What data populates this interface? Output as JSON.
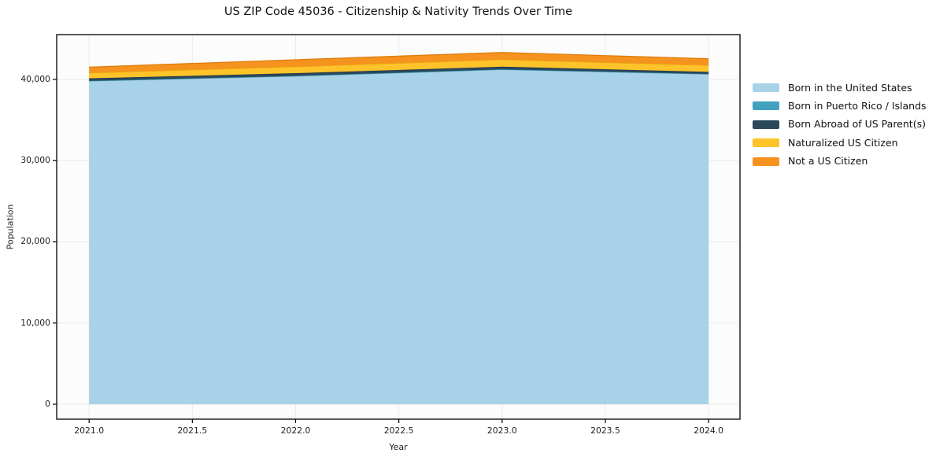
{
  "chart_data": {
    "type": "area",
    "stacked": true,
    "title": "US ZIP Code 45036 - Citizenship & Nativity Trends Over Time",
    "xlabel": "Year",
    "ylabel": "Population",
    "x": [
      2021,
      2022,
      2023,
      2024
    ],
    "series": [
      {
        "name": "Born in the United States",
        "color": "#A8D2E8",
        "edge": "#85BCD9",
        "values": [
          39800,
          40400,
          41200,
          40650
        ]
      },
      {
        "name": "Born in Puerto Rico / Islands",
        "color": "#41A2BE",
        "edge": "#35899F",
        "values": [
          30,
          40,
          50,
          30
        ]
      },
      {
        "name": "Born Abroad of US Parent(s)",
        "color": "#2A485C",
        "edge": "#1F3747",
        "values": [
          300,
          330,
          320,
          250
        ]
      },
      {
        "name": "Naturalized US Citizen",
        "color": "#FDC32B",
        "edge": "#E8A812",
        "values": [
          680,
          800,
          880,
          810
        ]
      },
      {
        "name": "Not a US Citizen",
        "color": "#F6931E",
        "edge": "#DD7C0D",
        "values": [
          700,
          850,
          870,
          810
        ]
      }
    ],
    "xticks": {
      "values": [
        2021.0,
        2021.5,
        2022.0,
        2022.5,
        2023.0,
        2023.5,
        2024.0
      ],
      "labels": [
        "2021.0",
        "2021.5",
        "2022.0",
        "2022.5",
        "2023.0",
        "2023.5",
        "2024.0"
      ]
    },
    "yticks": {
      "values": [
        0,
        10000,
        20000,
        30000,
        40000
      ],
      "labels": [
        "0",
        "10,000",
        "20,000",
        "30,000",
        "40,000"
      ]
    },
    "xlim": [
      2020.843,
      2024.152
    ],
    "ylim": [
      -1840,
      45520
    ],
    "grid": true,
    "legend_position": "right",
    "colors": {
      "grid": "#EAEAEA",
      "frame": "#000000",
      "plot_bg": "#FCFCFC"
    }
  }
}
